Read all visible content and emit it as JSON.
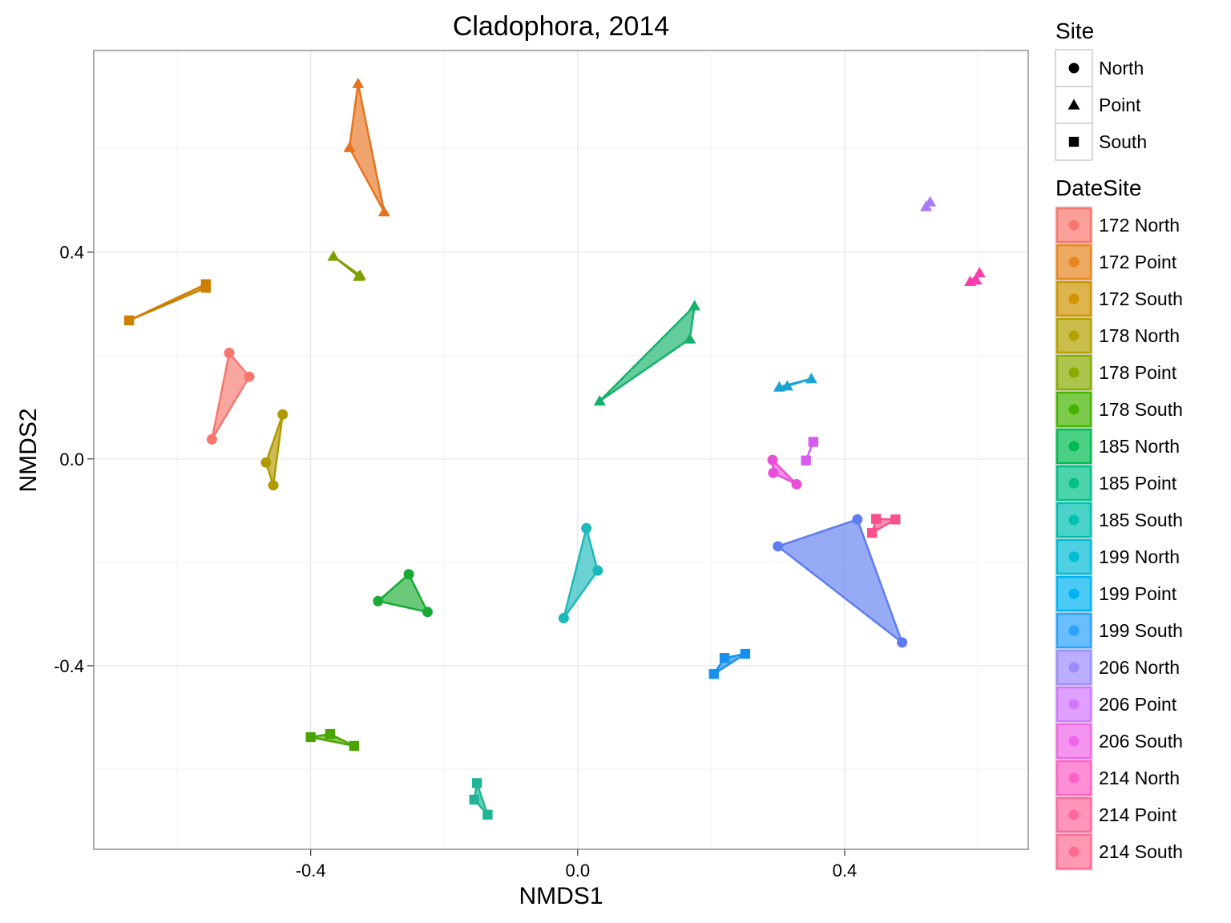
{
  "chart_data": {
    "type": "scatter",
    "title": "Cladophora, 2014",
    "xlabel": "NMDS1",
    "ylabel": "NMDS2",
    "xlim": [
      -0.725,
      0.675
    ],
    "ylim": [
      -0.755,
      0.79
    ],
    "xticks": [
      -0.4,
      0.0,
      0.4
    ],
    "xtick_labels": [
      "-0.4",
      "0.0",
      "0.4"
    ],
    "yticks": [
      -0.4,
      0.0,
      0.4
    ],
    "ytick_labels": [
      "-0.4",
      "0.0",
      "0.4"
    ],
    "grid": true,
    "legend_position": "right",
    "legends": [
      {
        "title": "Site",
        "entries": [
          {
            "label": "North",
            "shape": "circle"
          },
          {
            "label": "Point",
            "shape": "triangle"
          },
          {
            "label": "South",
            "shape": "square"
          }
        ]
      },
      {
        "title": "DateSite",
        "entries": [
          {
            "label": "172 North",
            "color": "#F8766D"
          },
          {
            "label": "172 Point",
            "color": "#E7851E"
          },
          {
            "label": "172 South",
            "color": "#D09400"
          },
          {
            "label": "178 North",
            "color": "#B2A100"
          },
          {
            "label": "178 Point",
            "color": "#89AC00"
          },
          {
            "label": "178 South",
            "color": "#45B500"
          },
          {
            "label": "185 North",
            "color": "#00BC51"
          },
          {
            "label": "185 Point",
            "color": "#00C087"
          },
          {
            "label": "185 South",
            "color": "#00C0B2"
          },
          {
            "label": "199 North",
            "color": "#00BCD6"
          },
          {
            "label": "199 Point",
            "color": "#00B3F2"
          },
          {
            "label": "199 South",
            "color": "#29A3FF"
          },
          {
            "label": "206 North",
            "color": "#9C8DFF"
          },
          {
            "label": "206 Point",
            "color": "#D277FF"
          },
          {
            "label": "206 South",
            "color": "#F166E8"
          },
          {
            "label": "214 North",
            "color": "#FF61C7"
          },
          {
            "label": "214 Point",
            "color": "#FF689E"
          },
          {
            "label": "214 South",
            "color": "#FF6C91"
          }
        ]
      }
    ],
    "series": [
      {
        "name": "172 North",
        "shape": "circle",
        "color": "#F8766D",
        "points": [
          [
            -0.522,
            0.205
          ],
          [
            -0.492,
            0.159
          ],
          [
            -0.548,
            0.038
          ]
        ]
      },
      {
        "name": "172 Point",
        "shape": "triangle",
        "color": "#E6731F",
        "points": [
          [
            -0.329,
            0.726
          ],
          [
            -0.342,
            0.602
          ],
          [
            -0.29,
            0.478
          ]
        ]
      },
      {
        "name": "172 South",
        "shape": "square",
        "color": "#CD7F00",
        "points": [
          [
            -0.672,
            0.268
          ],
          [
            -0.557,
            0.338
          ],
          [
            -0.557,
            0.331
          ]
        ]
      },
      {
        "name": "178 North",
        "shape": "circle",
        "color": "#B09A00",
        "points": [
          [
            -0.442,
            0.086
          ],
          [
            -0.467,
            -0.007
          ],
          [
            -0.456,
            -0.051
          ]
        ]
      },
      {
        "name": "178 Point",
        "shape": "triangle",
        "color": "#7F9E00",
        "points": [
          [
            -0.366,
            0.392
          ],
          [
            -0.326,
            0.355
          ],
          [
            -0.328,
            0.353
          ]
        ]
      },
      {
        "name": "178 South",
        "shape": "square",
        "color": "#4AA400",
        "points": [
          [
            -0.4,
            -0.538
          ],
          [
            -0.371,
            -0.532
          ],
          [
            -0.335,
            -0.555
          ]
        ]
      },
      {
        "name": "185 North",
        "shape": "circle",
        "color": "#1AAA33",
        "points": [
          [
            -0.253,
            -0.223
          ],
          [
            -0.299,
            -0.275
          ],
          [
            -0.225,
            -0.296
          ]
        ]
      },
      {
        "name": "185 Point",
        "shape": "triangle",
        "color": "#13B16A",
        "points": [
          [
            0.175,
            0.296
          ],
          [
            0.168,
            0.232
          ],
          [
            0.033,
            0.112
          ]
        ]
      },
      {
        "name": "185 South",
        "shape": "square",
        "color": "#1DB595",
        "points": [
          [
            -0.151,
            -0.627
          ],
          [
            -0.155,
            -0.659
          ],
          [
            -0.135,
            -0.688
          ]
        ]
      },
      {
        "name": "199 North",
        "shape": "circle",
        "color": "#1CB9BA",
        "points": [
          [
            0.013,
            -0.134
          ],
          [
            0.03,
            -0.216
          ],
          [
            -0.021,
            -0.308
          ]
        ]
      },
      {
        "name": "199 Point",
        "shape": "triangle",
        "color": "#1AA3D4",
        "points": [
          [
            0.302,
            0.139
          ],
          [
            0.314,
            0.141
          ],
          [
            0.35,
            0.155
          ]
        ]
      },
      {
        "name": "199 South",
        "shape": "square",
        "color": "#1690F0",
        "points": [
          [
            0.204,
            -0.416
          ],
          [
            0.22,
            -0.385
          ],
          [
            0.251,
            -0.377
          ]
        ]
      },
      {
        "name": "206 North",
        "shape": "circle",
        "color": "#5E7DF0",
        "points": [
          [
            0.419,
            -0.117
          ],
          [
            0.3,
            -0.169
          ],
          [
            0.486,
            -0.355
          ]
        ]
      },
      {
        "name": "206 Point",
        "shape": "triangle",
        "color": "#A97BF8",
        "points": [
          [
            0.528,
            0.497
          ],
          [
            0.522,
            0.488
          ]
        ]
      },
      {
        "name": "206 South",
        "shape": "square",
        "color": "#D95AF0",
        "points": [
          [
            0.353,
            0.033
          ],
          [
            0.342,
            -0.003
          ]
        ]
      },
      {
        "name": "214 North",
        "shape": "circle",
        "color": "#E94FD8",
        "points": [
          [
            0.292,
            -0.002
          ],
          [
            0.293,
            -0.027
          ],
          [
            0.328,
            -0.049
          ]
        ]
      },
      {
        "name": "214 Point",
        "shape": "triangle",
        "color": "#FA3CAF",
        "points": [
          [
            0.602,
            0.36
          ],
          [
            0.588,
            0.343
          ],
          [
            0.597,
            0.346
          ]
        ]
      },
      {
        "name": "214 South",
        "shape": "square",
        "color": "#F8508A",
        "points": [
          [
            0.447,
            -0.116
          ],
          [
            0.476,
            -0.117
          ],
          [
            0.441,
            -0.143
          ]
        ]
      }
    ]
  }
}
